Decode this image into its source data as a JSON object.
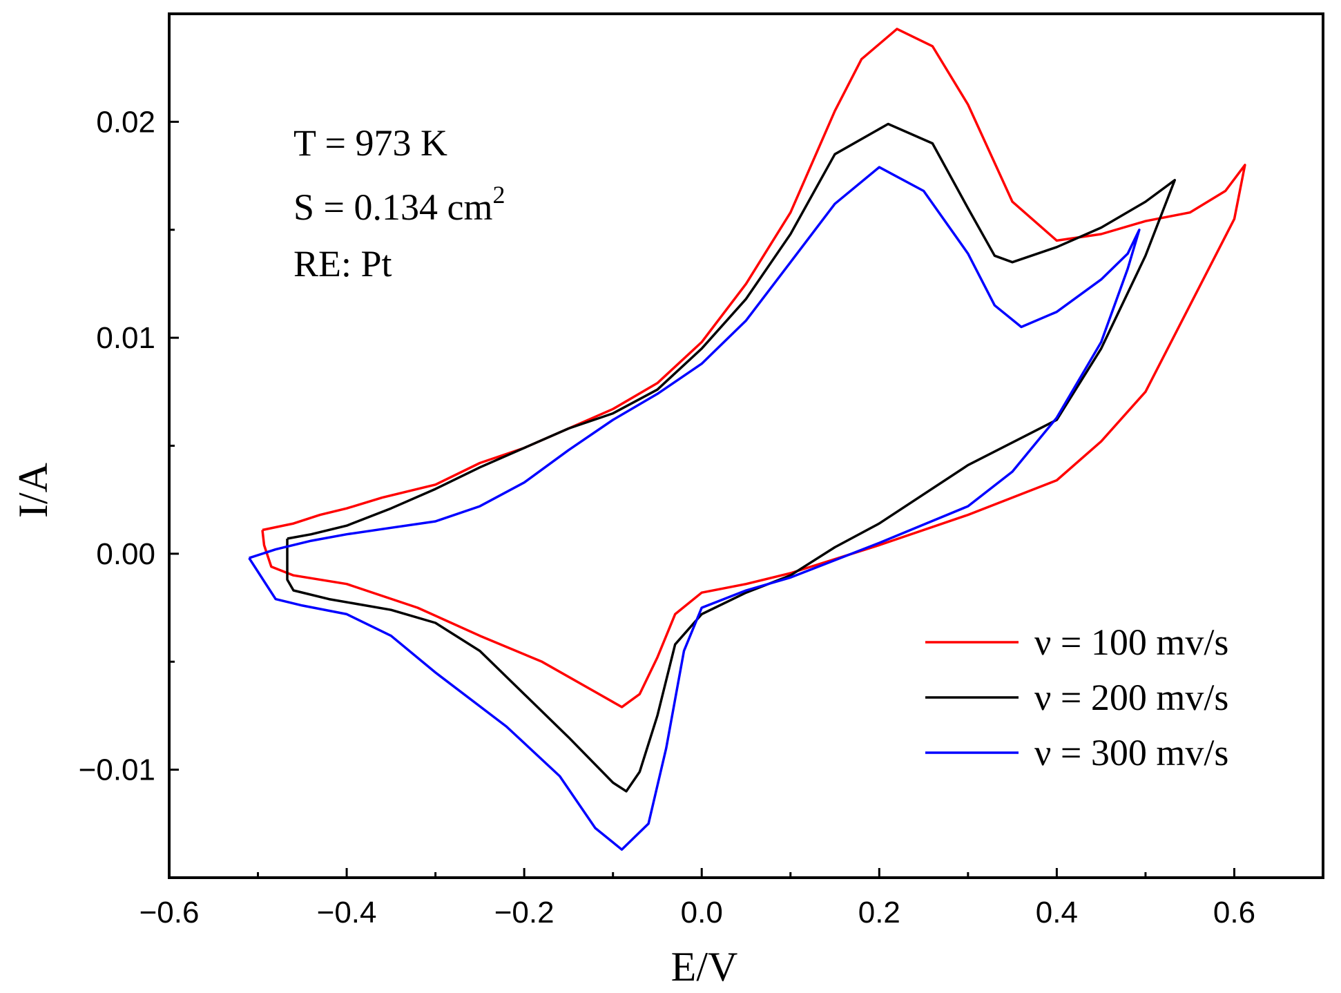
{
  "chart_data": {
    "type": "line",
    "xlabel": "E/V",
    "ylabel": "I/A",
    "xlim": [
      -0.6,
      0.7
    ],
    "ylim": [
      -0.015,
      0.025
    ],
    "x_ticks": [
      "−0.6",
      "−0.4",
      "−0.2",
      "0.0",
      "0.2",
      "0.4",
      "0.6"
    ],
    "y_ticks": [
      "−0.01",
      "0.00",
      "0.01",
      "0.02"
    ],
    "grid": false,
    "legend_position": "bottom-right",
    "annotations": {
      "temperature": "T = 973 K",
      "area_prefix": "S = 0.134 cm",
      "area_exponent": "2",
      "reference": "RE: Pt"
    },
    "series": [
      {
        "name": "ν = 100 mv/s",
        "color": "#ff0000",
        "points": [
          [
            -0.495,
            0.0011
          ],
          [
            -0.46,
            0.0014
          ],
          [
            -0.43,
            0.0018
          ],
          [
            -0.4,
            0.0021
          ],
          [
            -0.36,
            0.0026
          ],
          [
            -0.3,
            0.0032
          ],
          [
            -0.25,
            0.0042
          ],
          [
            -0.2,
            0.0049
          ],
          [
            -0.15,
            0.0058
          ],
          [
            -0.1,
            0.0067
          ],
          [
            -0.05,
            0.0079
          ],
          [
            0.0,
            0.0098
          ],
          [
            0.05,
            0.0125
          ],
          [
            0.1,
            0.0158
          ],
          [
            0.15,
            0.0205
          ],
          [
            0.18,
            0.0229
          ],
          [
            0.22,
            0.0243
          ],
          [
            0.26,
            0.0235
          ],
          [
            0.3,
            0.0208
          ],
          [
            0.35,
            0.0163
          ],
          [
            0.4,
            0.0145
          ],
          [
            0.45,
            0.0148
          ],
          [
            0.5,
            0.0154
          ],
          [
            0.55,
            0.0158
          ],
          [
            0.59,
            0.0168
          ],
          [
            0.612,
            0.018
          ],
          [
            0.6,
            0.0155
          ],
          [
            0.55,
            0.0115
          ],
          [
            0.5,
            0.0075
          ],
          [
            0.45,
            0.0052
          ],
          [
            0.4,
            0.0034
          ],
          [
            0.3,
            0.0018
          ],
          [
            0.2,
            0.0004
          ],
          [
            0.1,
            -0.0009
          ],
          [
            0.05,
            -0.0014
          ],
          [
            0.0,
            -0.0018
          ],
          [
            -0.03,
            -0.0028
          ],
          [
            -0.05,
            -0.0048
          ],
          [
            -0.07,
            -0.0065
          ],
          [
            -0.09,
            -0.0071
          ],
          [
            -0.12,
            -0.0064
          ],
          [
            -0.18,
            -0.005
          ],
          [
            -0.25,
            -0.0038
          ],
          [
            -0.32,
            -0.0025
          ],
          [
            -0.4,
            -0.0014
          ],
          [
            -0.46,
            -0.001
          ],
          [
            -0.485,
            -0.0006
          ],
          [
            -0.493,
            0.0004
          ],
          [
            -0.495,
            0.0011
          ]
        ]
      },
      {
        "name": "ν = 200 mv/s",
        "color": "#000000",
        "points": [
          [
            -0.467,
            0.0007
          ],
          [
            -0.44,
            0.0009
          ],
          [
            -0.4,
            0.0013
          ],
          [
            -0.35,
            0.0021
          ],
          [
            -0.3,
            0.003
          ],
          [
            -0.25,
            0.004
          ],
          [
            -0.2,
            0.0049
          ],
          [
            -0.15,
            0.0058
          ],
          [
            -0.1,
            0.0065
          ],
          [
            -0.05,
            0.0076
          ],
          [
            0.0,
            0.0095
          ],
          [
            0.05,
            0.0118
          ],
          [
            0.1,
            0.0148
          ],
          [
            0.15,
            0.0185
          ],
          [
            0.21,
            0.0199
          ],
          [
            0.26,
            0.019
          ],
          [
            0.3,
            0.016
          ],
          [
            0.33,
            0.0138
          ],
          [
            0.35,
            0.0135
          ],
          [
            0.4,
            0.0142
          ],
          [
            0.45,
            0.0151
          ],
          [
            0.5,
            0.0163
          ],
          [
            0.533,
            0.0173
          ],
          [
            0.5,
            0.0138
          ],
          [
            0.45,
            0.0095
          ],
          [
            0.4,
            0.0062
          ],
          [
            0.3,
            0.0041
          ],
          [
            0.2,
            0.0014
          ],
          [
            0.15,
            0.0003
          ],
          [
            0.1,
            -0.001
          ],
          [
            0.05,
            -0.0018
          ],
          [
            0.0,
            -0.0028
          ],
          [
            -0.03,
            -0.0042
          ],
          [
            -0.05,
            -0.0075
          ],
          [
            -0.07,
            -0.0101
          ],
          [
            -0.085,
            -0.011
          ],
          [
            -0.1,
            -0.0106
          ],
          [
            -0.15,
            -0.0085
          ],
          [
            -0.2,
            -0.0065
          ],
          [
            -0.25,
            -0.0045
          ],
          [
            -0.3,
            -0.0032
          ],
          [
            -0.35,
            -0.0026
          ],
          [
            -0.42,
            -0.0021
          ],
          [
            -0.46,
            -0.0017
          ],
          [
            -0.467,
            -0.0012
          ],
          [
            -0.467,
            0.0007
          ]
        ]
      },
      {
        "name": "ν = 300 mv/s",
        "color": "#0000ff",
        "points": [
          [
            -0.51,
            -0.0002
          ],
          [
            -0.48,
            0.0002
          ],
          [
            -0.44,
            0.0006
          ],
          [
            -0.4,
            0.0009
          ],
          [
            -0.35,
            0.0012
          ],
          [
            -0.3,
            0.0015
          ],
          [
            -0.25,
            0.0022
          ],
          [
            -0.2,
            0.0033
          ],
          [
            -0.15,
            0.0048
          ],
          [
            -0.1,
            0.0062
          ],
          [
            -0.05,
            0.0074
          ],
          [
            0.0,
            0.0088
          ],
          [
            0.05,
            0.0108
          ],
          [
            0.1,
            0.0135
          ],
          [
            0.15,
            0.0162
          ],
          [
            0.2,
            0.0179
          ],
          [
            0.25,
            0.0168
          ],
          [
            0.3,
            0.0139
          ],
          [
            0.33,
            0.0115
          ],
          [
            0.36,
            0.0105
          ],
          [
            0.4,
            0.0112
          ],
          [
            0.45,
            0.0127
          ],
          [
            0.48,
            0.0139
          ],
          [
            0.493,
            0.015
          ],
          [
            0.48,
            0.0132
          ],
          [
            0.45,
            0.0098
          ],
          [
            0.4,
            0.0063
          ],
          [
            0.35,
            0.0038
          ],
          [
            0.3,
            0.0022
          ],
          [
            0.2,
            0.0005
          ],
          [
            0.1,
            -0.0011
          ],
          [
            0.05,
            -0.0017
          ],
          [
            0.0,
            -0.0025
          ],
          [
            -0.02,
            -0.0045
          ],
          [
            -0.04,
            -0.009
          ],
          [
            -0.06,
            -0.0125
          ],
          [
            -0.09,
            -0.0137
          ],
          [
            -0.12,
            -0.0127
          ],
          [
            -0.16,
            -0.0103
          ],
          [
            -0.22,
            -0.008
          ],
          [
            -0.3,
            -0.0055
          ],
          [
            -0.35,
            -0.0038
          ],
          [
            -0.4,
            -0.0028
          ],
          [
            -0.45,
            -0.0024
          ],
          [
            -0.48,
            -0.0021
          ],
          [
            -0.51,
            -0.0002
          ]
        ]
      }
    ]
  }
}
